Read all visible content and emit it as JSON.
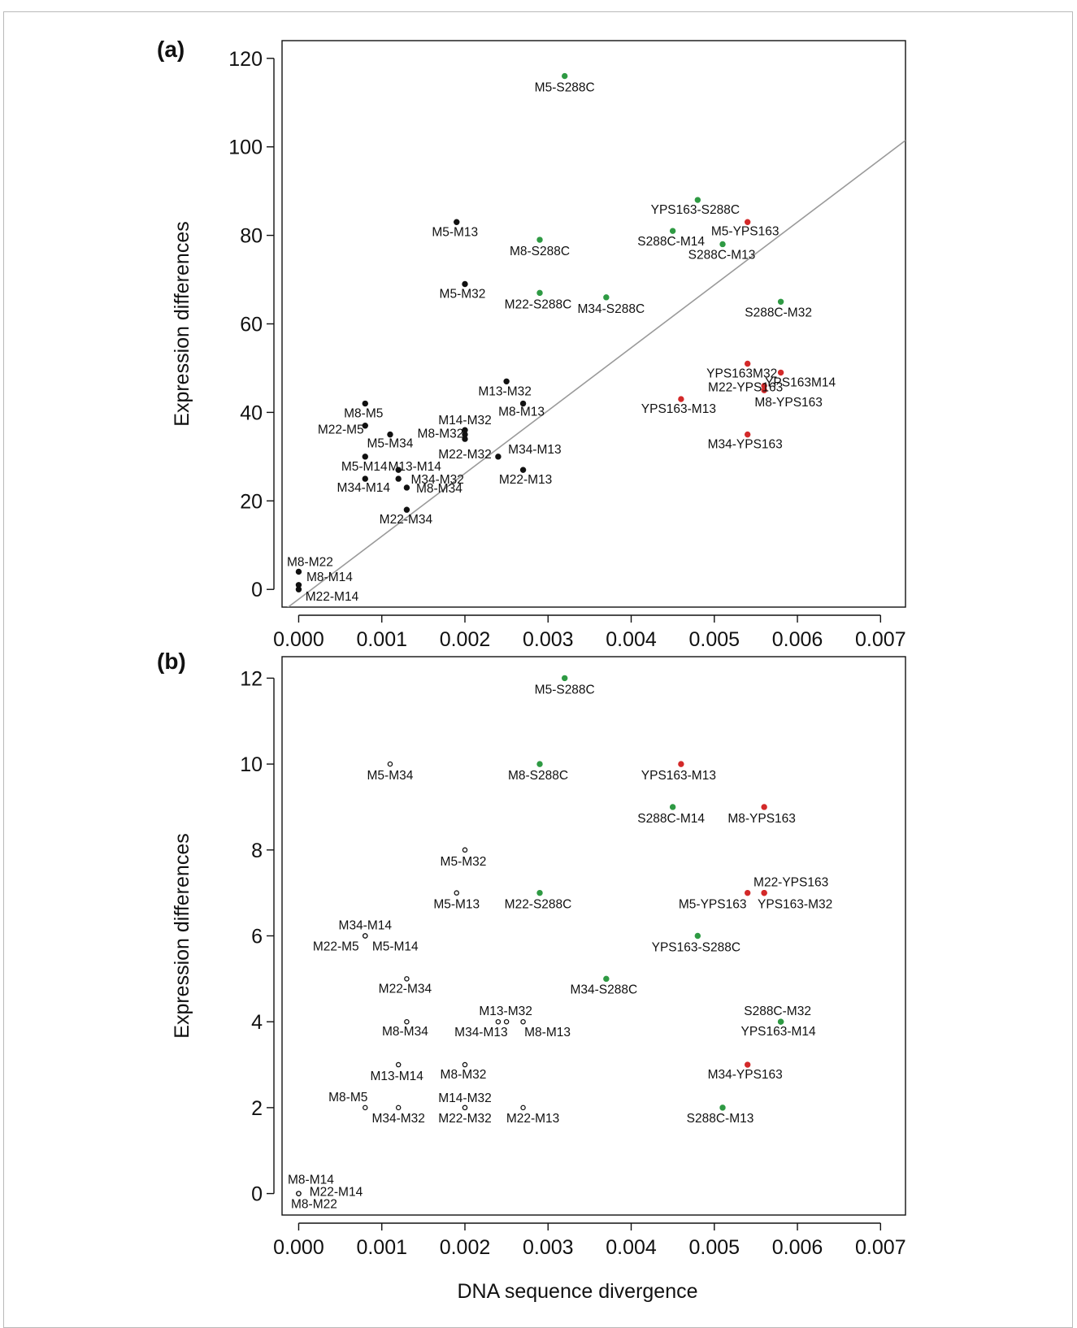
{
  "figure": {
    "xlabel": "DNA sequence divergence"
  },
  "colors": {
    "black": "#111111",
    "green": "#2e9a43",
    "red": "#d32929",
    "fit_line": "#9a9a9a",
    "frame": "#b9b9b9"
  },
  "chart_data": [
    {
      "type": "scatter",
      "panel_label": "(a)",
      "xlabel": "",
      "ylabel": "Expression differences",
      "xlim": [
        -0.0002,
        0.0073
      ],
      "ylim": [
        -4,
        124
      ],
      "x_ticks": [
        "0.000",
        "0.001",
        "0.002",
        "0.003",
        "0.004",
        "0.005",
        "0.006",
        "0.007"
      ],
      "y_ticks": [
        "0",
        "20",
        "40",
        "60",
        "80",
        "100",
        "120"
      ],
      "marker": "filled",
      "fit_line": {
        "intercept": -2.2,
        "slope": 14200
      },
      "points": [
        {
          "label": "M5-S288C",
          "x": 0.0032,
          "y": 116,
          "group": "green"
        },
        {
          "label": "YPS163-S288C",
          "x": 0.0048,
          "y": 88,
          "group": "green"
        },
        {
          "label": "S288C-M14",
          "x": 0.0045,
          "y": 81,
          "group": "green"
        },
        {
          "label": "S288C-M13",
          "x": 0.0051,
          "y": 78,
          "group": "green"
        },
        {
          "label": "M5-YPS163",
          "x": 0.0054,
          "y": 83,
          "group": "red"
        },
        {
          "label": "M8-S288C",
          "x": 0.0029,
          "y": 79,
          "group": "green"
        },
        {
          "label": "M22-S288C",
          "x": 0.0029,
          "y": 67,
          "group": "green"
        },
        {
          "label": "M34-S288C",
          "x": 0.0037,
          "y": 66,
          "group": "green"
        },
        {
          "label": "S288C-M32",
          "x": 0.0058,
          "y": 65,
          "group": "green"
        },
        {
          "label": "M5-M13",
          "x": 0.0019,
          "y": 83,
          "group": "black"
        },
        {
          "label": "M5-M32",
          "x": 0.002,
          "y": 69,
          "group": "black"
        },
        {
          "label": "YPS163M32",
          "x": 0.0054,
          "y": 51,
          "group": "red"
        },
        {
          "label": "YPS163M14",
          "x": 0.0058,
          "y": 49,
          "group": "red"
        },
        {
          "label": "M22-YPS163",
          "x": 0.0056,
          "y": 46,
          "group": "red"
        },
        {
          "label": "M8-YPS163",
          "x": 0.0056,
          "y": 45,
          "group": "red"
        },
        {
          "label": "YPS163-M13",
          "x": 0.0046,
          "y": 43,
          "group": "red"
        },
        {
          "label": "M34-YPS163",
          "x": 0.0054,
          "y": 35,
          "group": "red"
        },
        {
          "label": "M13-M32",
          "x": 0.0025,
          "y": 47,
          "group": "black"
        },
        {
          "label": "M8-M13",
          "x": 0.0027,
          "y": 42,
          "group": "black"
        },
        {
          "label": "M14-M32",
          "x": 0.002,
          "y": 36,
          "group": "black"
        },
        {
          "label": "M8-M32",
          "x": 0.002,
          "y": 35,
          "group": "black"
        },
        {
          "label": "M22-M32",
          "x": 0.002,
          "y": 34,
          "group": "black"
        },
        {
          "label": "M34-M13",
          "x": 0.0024,
          "y": 30,
          "group": "black"
        },
        {
          "label": "M22-M13",
          "x": 0.0027,
          "y": 27,
          "group": "black"
        },
        {
          "label": "M8-M5",
          "x": 0.0008,
          "y": 42,
          "group": "black"
        },
        {
          "label": "M22-M5",
          "x": 0.0008,
          "y": 37,
          "group": "black"
        },
        {
          "label": "M5-M34",
          "x": 0.0011,
          "y": 35,
          "group": "black"
        },
        {
          "label": "M5-M14",
          "x": 0.0008,
          "y": 30,
          "group": "black"
        },
        {
          "label": "M13-M14",
          "x": 0.0012,
          "y": 27,
          "group": "black"
        },
        {
          "label": "M34-M14",
          "x": 0.0008,
          "y": 25,
          "group": "black"
        },
        {
          "label": "M34-M32",
          "x": 0.0012,
          "y": 25,
          "group": "black"
        },
        {
          "label": "M8-M34",
          "x": 0.0013,
          "y": 23,
          "group": "black"
        },
        {
          "label": "M22-M34",
          "x": 0.0013,
          "y": 18,
          "group": "black"
        },
        {
          "label": "M8-M22",
          "x": 0.0,
          "y": 4,
          "group": "black"
        },
        {
          "label": "M8-M14",
          "x": 0.0,
          "y": 1,
          "group": "black"
        },
        {
          "label": "M22-M14",
          "x": 0.0,
          "y": 0,
          "group": "black"
        }
      ]
    },
    {
      "type": "scatter",
      "panel_label": "(b)",
      "xlabel": "DNA sequence divergence",
      "ylabel": "Expression differences",
      "xlim": [
        -0.0002,
        0.0073
      ],
      "ylim": [
        -0.5,
        12.5
      ],
      "x_ticks": [
        "0.000",
        "0.001",
        "0.002",
        "0.003",
        "0.004",
        "0.005",
        "0.006",
        "0.007"
      ],
      "y_ticks": [
        "0",
        "2",
        "4",
        "6",
        "8",
        "10",
        "12"
      ],
      "marker": "black open, colored filled",
      "points": [
        {
          "label": "M5-S288C",
          "x": 0.0032,
          "y": 12,
          "group": "green"
        },
        {
          "label": "M5-M34",
          "x": 0.0011,
          "y": 10,
          "group": "black"
        },
        {
          "label": "M8-S288C",
          "x": 0.0029,
          "y": 10,
          "group": "green"
        },
        {
          "label": "YPS163-M13",
          "x": 0.0046,
          "y": 10,
          "group": "red"
        },
        {
          "label": "S288C-M14",
          "x": 0.0045,
          "y": 9,
          "group": "green"
        },
        {
          "label": "M8-YPS163",
          "x": 0.0056,
          "y": 9,
          "group": "red"
        },
        {
          "label": "M5-M32",
          "x": 0.002,
          "y": 8,
          "group": "black"
        },
        {
          "label": "M5-M13",
          "x": 0.0019,
          "y": 7,
          "group": "black"
        },
        {
          "label": "M22-S288C",
          "x": 0.0029,
          "y": 7,
          "group": "green"
        },
        {
          "label": "M22-YPS163",
          "x": 0.0056,
          "y": 7,
          "group": "red"
        },
        {
          "label": "M5-YPS163",
          "x": 0.0054,
          "y": 7,
          "group": "red"
        },
        {
          "label": "YPS163-M32",
          "x": 0.0056,
          "y": 7,
          "group": "red"
        },
        {
          "label": "M34-M14",
          "x": 0.0008,
          "y": 6,
          "group": "black"
        },
        {
          "label": "M22-M5",
          "x": 0.0008,
          "y": 6,
          "group": "black"
        },
        {
          "label": "M5-M14",
          "x": 0.0008,
          "y": 6,
          "group": "black"
        },
        {
          "label": "YPS163-S288C",
          "x": 0.0048,
          "y": 6,
          "group": "green"
        },
        {
          "label": "M22-M34",
          "x": 0.0013,
          "y": 5,
          "group": "black"
        },
        {
          "label": "M34-S288C",
          "x": 0.0037,
          "y": 5,
          "group": "green"
        },
        {
          "label": "M8-M34",
          "x": 0.0013,
          "y": 4,
          "group": "black"
        },
        {
          "label": "M13-M32",
          "x": 0.0025,
          "y": 4,
          "group": "black"
        },
        {
          "label": "M34-M13",
          "x": 0.0024,
          "y": 4,
          "group": "black"
        },
        {
          "label": "M8-M13",
          "x": 0.0027,
          "y": 4,
          "group": "black"
        },
        {
          "label": "S288C-M32",
          "x": 0.0058,
          "y": 4,
          "group": "green"
        },
        {
          "label": "YPS163-M14",
          "x": 0.0058,
          "y": 4,
          "group": "green"
        },
        {
          "label": "M13-M14",
          "x": 0.0012,
          "y": 3,
          "group": "black"
        },
        {
          "label": "M8-M32",
          "x": 0.002,
          "y": 3,
          "group": "black"
        },
        {
          "label": "M34-YPS163",
          "x": 0.0054,
          "y": 3,
          "group": "red"
        },
        {
          "label": "M8-M5",
          "x": 0.0008,
          "y": 2,
          "group": "black"
        },
        {
          "label": "M34-M32",
          "x": 0.0012,
          "y": 2,
          "group": "black"
        },
        {
          "label": "M14-M32",
          "x": 0.002,
          "y": 2,
          "group": "black"
        },
        {
          "label": "M22-M32",
          "x": 0.002,
          "y": 2,
          "group": "black"
        },
        {
          "label": "M22-M13",
          "x": 0.0027,
          "y": 2,
          "group": "black"
        },
        {
          "label": "S288C-M13",
          "x": 0.0051,
          "y": 2,
          "group": "green"
        },
        {
          "label": "M8-M14",
          "x": 0.0,
          "y": 0,
          "group": "black"
        },
        {
          "label": "M22-M14",
          "x": 0.0,
          "y": 0,
          "group": "black"
        },
        {
          "label": "M8-M22",
          "x": 0.0,
          "y": 0,
          "group": "black"
        }
      ]
    }
  ]
}
